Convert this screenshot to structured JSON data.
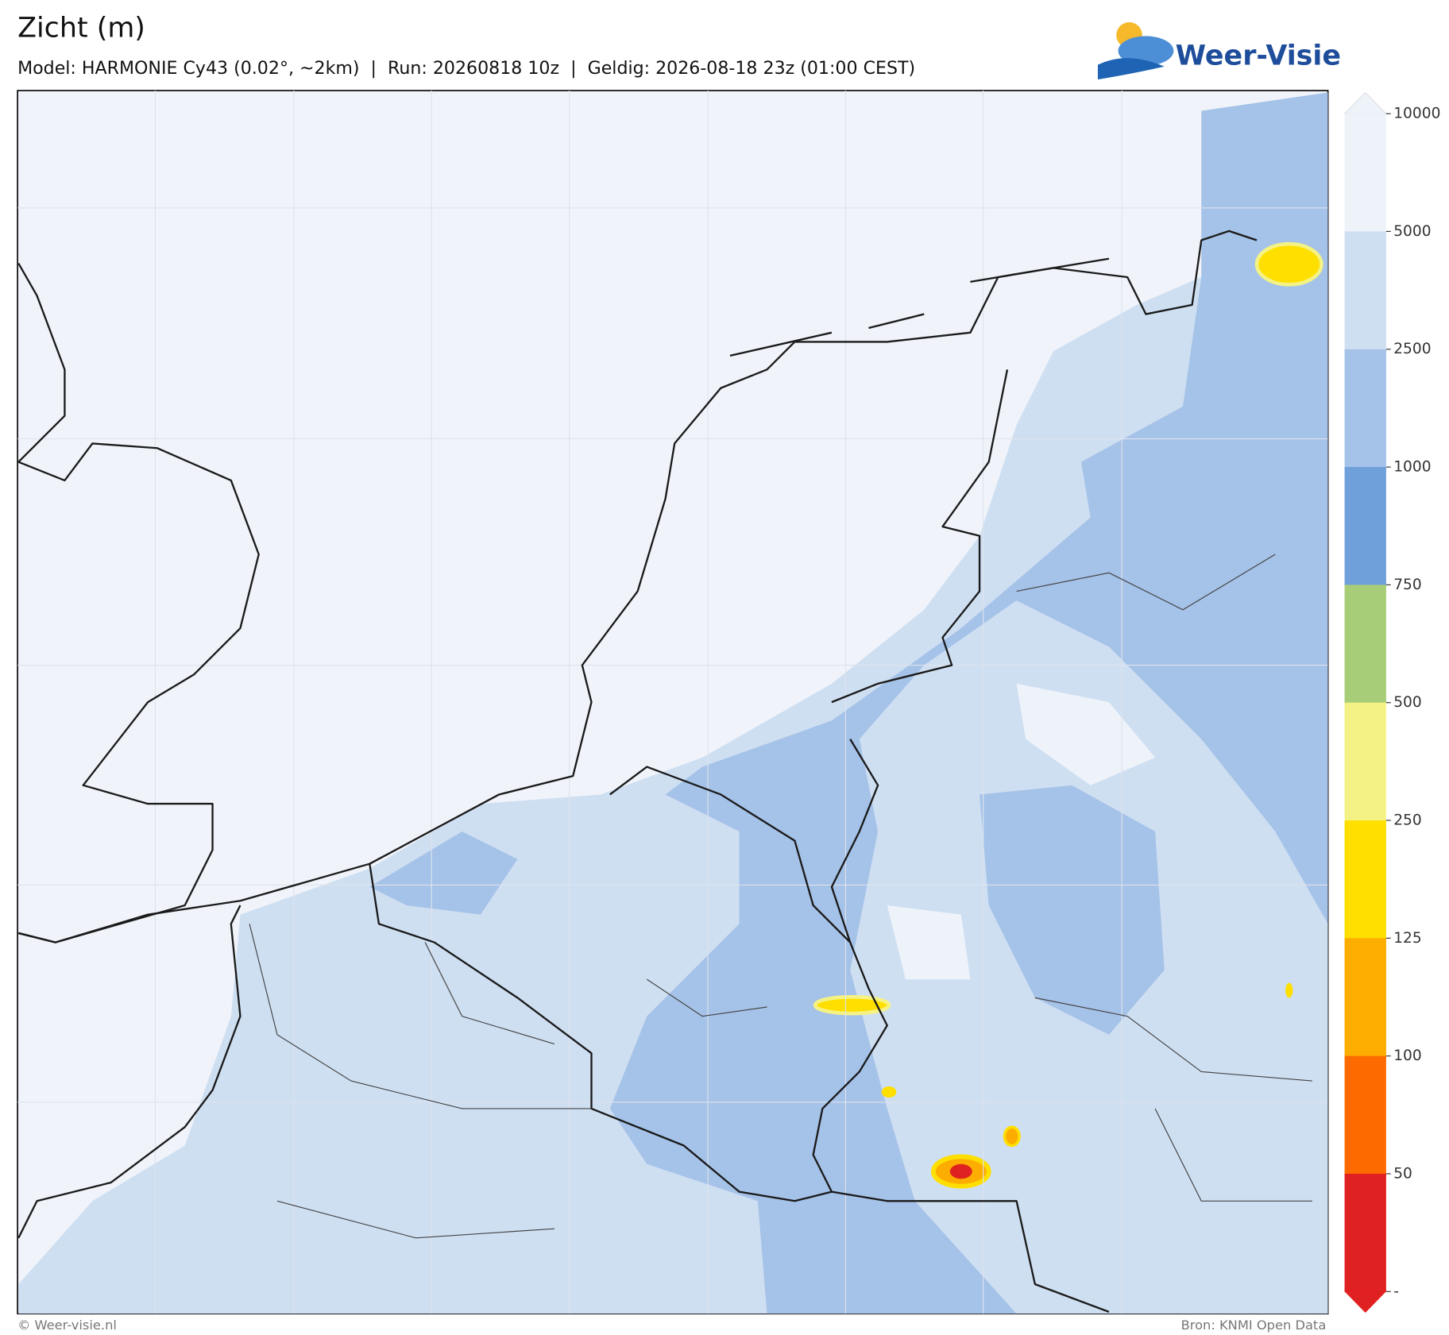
{
  "header": {
    "title": "Zicht (m)",
    "subtitle": "Model: HARMONIE Cy43 (0.02°, ~2km)  |  Run: 20260818 10z  |  Geldig: 2026-08-18 23z (01:00 CEST)",
    "logo": "Weer-Visie"
  },
  "colorbar": {
    "ticks": [
      10000,
      5000,
      2500,
      1000,
      750,
      500,
      250,
      125,
      100,
      50
    ],
    "bottom_label": "-",
    "colors": [
      "#eef3fa",
      "#cfdff2",
      "#a5c2e8",
      "#6fa0da",
      "#a8cd78",
      "#f4f284",
      "#fedf00",
      "#fdac00",
      "#fd6b00",
      "#e02121"
    ]
  },
  "footer": {
    "copyright": "© Weer-visie.nl",
    "source": "Bron: KNMI Open Data"
  }
}
